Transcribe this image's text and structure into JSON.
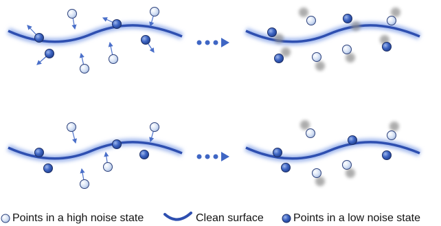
{
  "legend": {
    "items": [
      {
        "label": "Points in a high noise state"
      },
      {
        "label": "Clean surface"
      },
      {
        "label": "Points in a low noise state"
      }
    ]
  }
}
